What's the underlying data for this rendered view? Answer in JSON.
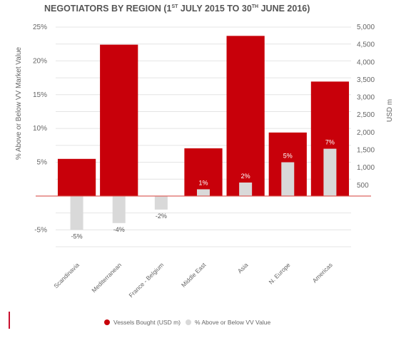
{
  "title": {
    "main": "NEGOTIATORS BY REGION  (1",
    "sup1": "ST",
    "mid": " JULY 2015 TO 30",
    "sup2": "TH",
    "end": " JUNE 2016)"
  },
  "colors": {
    "bought": "#c8000a",
    "pct": "#d9d9d9",
    "zero_line": "#d9534f",
    "pct_label_light": "#ffffff",
    "pct_label_dark": "#555555"
  },
  "chart_data": {
    "type": "bar",
    "categories": [
      "Scandinavia",
      "Mediterranean",
      "France - Belgium",
      "Middle East",
      "Asia",
      "N. Europe",
      "Americas"
    ],
    "series": [
      {
        "name": "Vessels Bought (USD m)",
        "axis": "right",
        "values": [
          1250,
          4500,
          150,
          1550,
          4750,
          2000,
          3450
        ]
      },
      {
        "name": "% Above or Below VV Value",
        "axis": "left",
        "values": [
          -5,
          -4,
          -2,
          1,
          2,
          5,
          7
        ]
      }
    ],
    "pct_labels": [
      "-5%",
      "-4%",
      "-2%",
      "1%",
      "2%",
      "5%",
      "7%"
    ],
    "ylabel_left": "% Above or Below VV Market Value",
    "ylabel_right": "USD m",
    "ylim_left": [
      -7.5,
      25
    ],
    "ylim_right": [
      -1250,
      5000
    ],
    "left_ticks": [
      "25%",
      "20%",
      "15%",
      "10%",
      "5%",
      "",
      "-5%"
    ],
    "right_ticks": [
      "5,000",
      "4,500",
      "4,000",
      "3,500",
      "3,000",
      "2,500",
      "2,000",
      "1,500",
      "1,000",
      "500"
    ],
    "grid": true,
    "legend_position": "bottom"
  }
}
